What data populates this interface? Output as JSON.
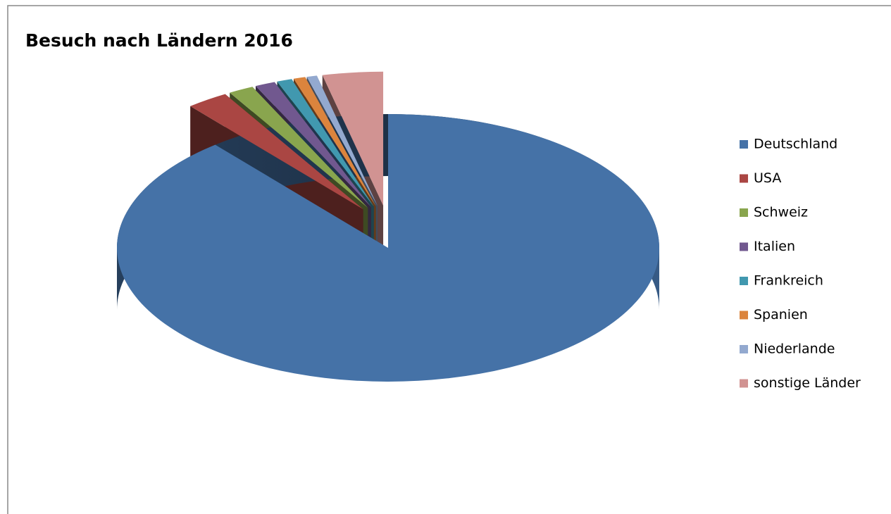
{
  "chart_data": {
    "type": "pie3d",
    "title": "Besuch nach Ländern 2016",
    "categories": [
      "Deutschland",
      "USA",
      "Schweiz",
      "Italien",
      "Frankreich",
      "Spanien",
      "Niederlande",
      "sonstige Länder"
    ],
    "values": [
      89,
      2.5,
      1.5,
      1.2,
      0.9,
      0.7,
      0.6,
      3.6
    ],
    "colors": [
      "#4572a7",
      "#aa4643",
      "#89a54e",
      "#71588f",
      "#4198af",
      "#db843d",
      "#93a9cf",
      "#d19392"
    ]
  }
}
